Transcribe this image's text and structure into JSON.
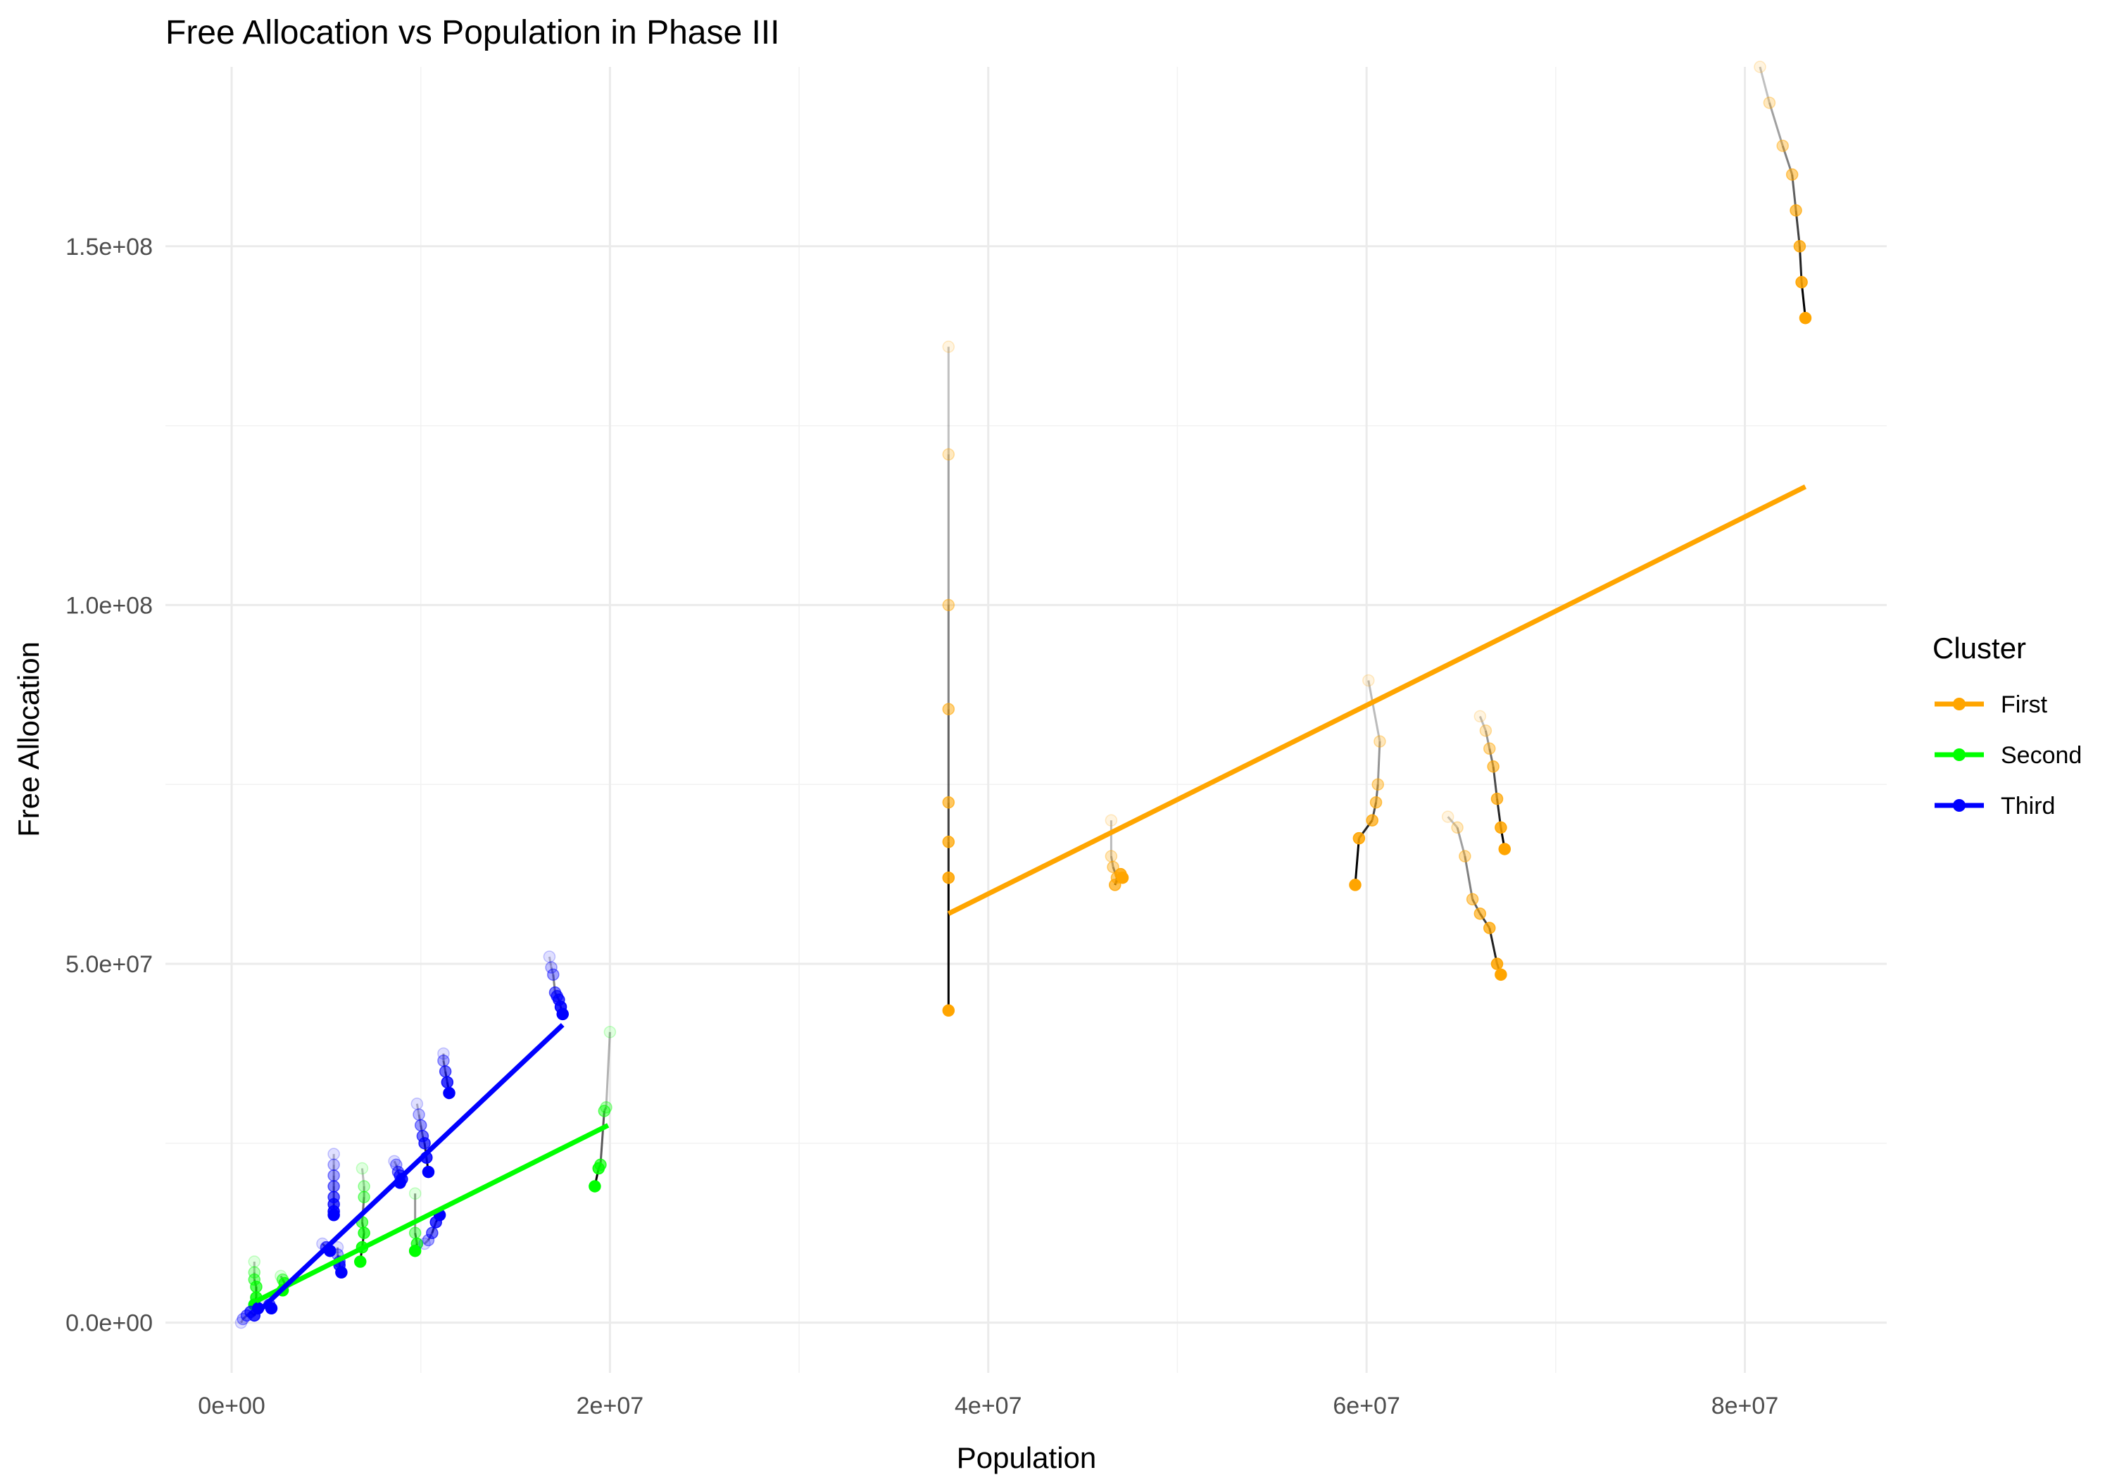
{
  "chart_data": {
    "type": "scatter",
    "title": "Free Allocation vs Population in Phase III",
    "xlabel": "Population",
    "ylabel": "Free Allocation",
    "xlim": [
      -3500000,
      87500000
    ],
    "ylim": [
      -7000000,
      175000000
    ],
    "x_ticks": [
      0,
      20000000,
      40000000,
      60000000,
      80000000
    ],
    "x_tick_labels": [
      "0e+00",
      "2e+07",
      "4e+07",
      "6e+07",
      "8e+07"
    ],
    "y_ticks": [
      0,
      50000000,
      100000000,
      150000000
    ],
    "y_tick_labels": [
      "0.0e+00",
      "5.0e+07",
      "1.0e+08",
      "1.5e+08"
    ],
    "grid": true,
    "legend": {
      "title": "Cluster",
      "placement": "right",
      "entries": [
        {
          "label": "First",
          "color": "#FFA500"
        },
        {
          "label": "Second",
          "color": "#00FF00"
        },
        {
          "label": "Third",
          "color": "#0000FF"
        }
      ]
    },
    "colors": {
      "First": "#FFA500",
      "Second": "#00FF00",
      "Third": "#0000FF",
      "path": "#000000"
    },
    "series": [
      {
        "name": "First",
        "color": "#FFA500",
        "trend": {
          "x": [
            37900000,
            83200000
          ],
          "y": [
            57000000,
            116500000
          ]
        },
        "tracks": [
          {
            "x": [
              37900000,
              37900000,
              37900000,
              37900000,
              37900000,
              37900000,
              37900000,
              37900000
            ],
            "y": [
              136000000,
              121000000,
              100000000,
              85500000,
              72500000,
              67000000,
              62000000,
              43500000
            ]
          },
          {
            "x": [
              46500000,
              46500000,
              46600000,
              46800000,
              46700000,
              47000000,
              47100000
            ],
            "y": [
              70000000,
              65000000,
              63500000,
              62000000,
              61000000,
              62500000,
              62000000
            ]
          },
          {
            "x": [
              60100000,
              60700000,
              60600000,
              60500000,
              60300000,
              59600000,
              59400000
            ],
            "y": [
              89500000,
              81000000,
              75000000,
              72500000,
              70000000,
              67500000,
              61000000
            ]
          },
          {
            "x": [
              66000000,
              66300000,
              66500000,
              66700000,
              66900000,
              67100000,
              67300000
            ],
            "y": [
              84500000,
              82500000,
              80000000,
              77500000,
              73000000,
              69000000,
              66000000
            ]
          },
          {
            "x": [
              64300000,
              64800000,
              65200000,
              65600000,
              66000000,
              66500000,
              66900000,
              67100000
            ],
            "y": [
              70500000,
              69000000,
              65000000,
              59000000,
              57000000,
              55000000,
              50000000,
              48500000
            ]
          },
          {
            "x": [
              80800000,
              81300000,
              82000000,
              82500000,
              82700000,
              82900000,
              83000000,
              83200000
            ],
            "y": [
              175000000,
              170000000,
              164000000,
              160000000,
              155000000,
              150000000,
              145000000,
              140000000
            ]
          }
        ]
      },
      {
        "name": "Second",
        "color": "#00FF00",
        "trend": {
          "x": [
            1300000,
            19900000
          ],
          "y": [
            3000000,
            27500000
          ]
        },
        "tracks": [
          {
            "x": [
              1200000,
              1200000,
              1200000,
              1300000,
              1300000,
              1200000
            ],
            "y": [
              8500000,
              7000000,
              6000000,
              5000000,
              3500000,
              2500000
            ]
          },
          {
            "x": [
              2600000,
              2700000,
              2800000,
              2700000
            ],
            "y": [
              6500000,
              6000000,
              5500000,
              4500000
            ]
          },
          {
            "x": [
              6900000,
              7000000,
              7000000,
              6900000,
              7000000,
              6900000,
              6800000
            ],
            "y": [
              21500000,
              19000000,
              17500000,
              14000000,
              12500000,
              10500000,
              8500000
            ]
          },
          {
            "x": [
              9700000,
              9700000,
              9800000,
              9700000
            ],
            "y": [
              18000000,
              12500000,
              11000000,
              10000000
            ]
          },
          {
            "x": [
              20000000,
              19800000,
              19700000,
              19500000,
              19400000,
              19200000
            ],
            "y": [
              40500000,
              30000000,
              29500000,
              22000000,
              21500000,
              19000000
            ]
          }
        ]
      },
      {
        "name": "Third",
        "color": "#0000FF",
        "trend": {
          "x": [
            1400000,
            17500000
          ],
          "y": [
            1500000,
            41500000
          ]
        },
        "tracks": [
          {
            "x": [
              500000,
              600000,
              800000,
              1000000,
              1200000,
              1400000
            ],
            "y": [
              0,
              500000,
              1000000,
              1500000,
              1000000,
              2000000
            ]
          },
          {
            "x": [
              1800000,
              2000000,
              2100000
            ],
            "y": [
              3000000,
              2500000,
              2000000
            ]
          },
          {
            "x": [
              4800000,
              5000000,
              5200000
            ],
            "y": [
              11000000,
              10500000,
              10000000
            ]
          },
          {
            "x": [
              5400000,
              5400000,
              5400000,
              5400000,
              5400000,
              5400000,
              5400000,
              5400000
            ],
            "y": [
              23500000,
              22000000,
              20500000,
              19000000,
              17500000,
              16500000,
              15500000,
              15000000
            ]
          },
          {
            "x": [
              5600000,
              5600000,
              5700000,
              5700000,
              5800000
            ],
            "y": [
              10500000,
              9500000,
              8500000,
              8000000,
              7000000
            ]
          },
          {
            "x": [
              8600000,
              8700000,
              8800000,
              8900000,
              9000000,
              8900000
            ],
            "y": [
              22500000,
              22000000,
              21000000,
              20500000,
              20000000,
              19500000
            ]
          },
          {
            "x": [
              9800000,
              9900000,
              10000000,
              10100000,
              10200000,
              10300000,
              10400000
            ],
            "y": [
              30500000,
              29000000,
              27500000,
              26000000,
              25000000,
              23000000,
              21000000
            ]
          },
          {
            "x": [
              10200000,
              10400000,
              10600000,
              10800000,
              11000000
            ],
            "y": [
              11000000,
              11500000,
              12500000,
              14000000,
              15000000
            ]
          },
          {
            "x": [
              11200000,
              11200000,
              11300000,
              11400000,
              11500000
            ],
            "y": [
              37500000,
              36500000,
              35000000,
              33500000,
              32000000
            ]
          },
          {
            "x": [
              16800000,
              16900000,
              17000000,
              17100000,
              17200000,
              17300000,
              17400000,
              17500000
            ],
            "y": [
              51000000,
              49500000,
              48500000,
              46000000,
              45500000,
              45000000,
              44000000,
              43000000
            ]
          }
        ]
      }
    ]
  }
}
